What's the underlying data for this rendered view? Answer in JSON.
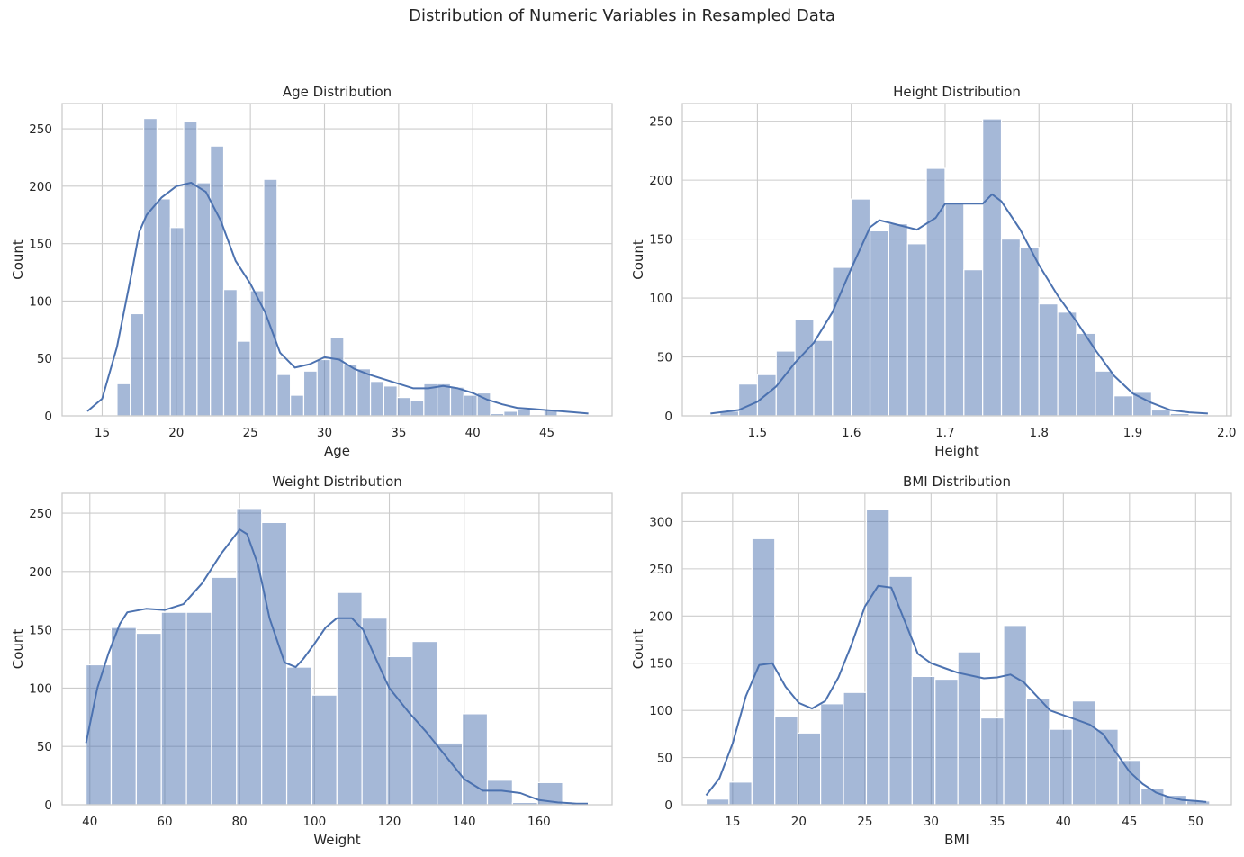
{
  "figure": {
    "title": "Distribution of Numeric Variables in Resampled Data"
  },
  "colors": {
    "bar_fill": "#4c72b0",
    "bar_opacity": 0.5,
    "kde_line": "#4c72b0",
    "grid": "#cccccc",
    "spine": "#cccccc"
  },
  "chart_data": [
    {
      "type": "bar",
      "title": "Age Distribution",
      "xlabel": "Age",
      "ylabel": "Count",
      "xlim": [
        12.3,
        49.4
      ],
      "ylim": [
        0,
        272
      ],
      "xticks": [
        15,
        20,
        25,
        30,
        35,
        40,
        45
      ],
      "yticks": [
        0,
        50,
        100,
        150,
        200,
        250
      ],
      "grid": true,
      "bins": {
        "start": 16.0,
        "width": 0.9,
        "counts": [
          28,
          89,
          259,
          189,
          164,
          256,
          203,
          235,
          110,
          65,
          109,
          206,
          36,
          18,
          39,
          49,
          68,
          45,
          41,
          30,
          26,
          16,
          13,
          28,
          28,
          25,
          18,
          20,
          2,
          4,
          6,
          1,
          5
        ]
      },
      "kde": {
        "x": [
          14.0,
          15.0,
          16.0,
          17.0,
          17.5,
          18.0,
          19.0,
          20.0,
          21.0,
          22.0,
          23.0,
          24.0,
          25.0,
          26.0,
          27.0,
          28.0,
          29.0,
          30.0,
          31.0,
          32.0,
          33.0,
          34.0,
          35.0,
          36.0,
          37.0,
          38.0,
          39.0,
          40.0,
          41.0,
          42.0,
          43.0,
          44.0,
          45.0,
          46.0,
          47.0,
          47.8
        ],
        "y": [
          4,
          15,
          60,
          125,
          160,
          175,
          190,
          200,
          203,
          195,
          170,
          135,
          115,
          90,
          55,
          42,
          45,
          51,
          49,
          41,
          36,
          32,
          28,
          24,
          24,
          26,
          24,
          20,
          14,
          10,
          7,
          6,
          5,
          4,
          3,
          2
        ]
      }
    },
    {
      "type": "bar",
      "title": "Height Distribution",
      "xlabel": "Height",
      "ylabel": "Count",
      "xlim": [
        1.42,
        2.005
      ],
      "ylim": [
        0,
        265
      ],
      "xticks": [
        1.5,
        1.6,
        1.7,
        1.8,
        1.9,
        2.0
      ],
      "yticks": [
        0,
        50,
        100,
        150,
        200,
        250
      ],
      "grid": true,
      "bins": {
        "start": 1.46,
        "width": 0.02,
        "counts": [
          4,
          27,
          35,
          55,
          82,
          64,
          126,
          184,
          157,
          163,
          146,
          210,
          180,
          124,
          252,
          150,
          143,
          95,
          88,
          70,
          38,
          17,
          20,
          5,
          2,
          1
        ]
      },
      "kde": {
        "x": [
          1.45,
          1.48,
          1.5,
          1.52,
          1.54,
          1.56,
          1.58,
          1.6,
          1.62,
          1.63,
          1.65,
          1.67,
          1.69,
          1.7,
          1.72,
          1.74,
          1.75,
          1.76,
          1.78,
          1.8,
          1.82,
          1.84,
          1.86,
          1.88,
          1.9,
          1.92,
          1.94,
          1.96,
          1.98
        ],
        "y": [
          2,
          5,
          12,
          25,
          45,
          62,
          88,
          125,
          160,
          166,
          162,
          158,
          168,
          180,
          180,
          180,
          188,
          182,
          158,
          128,
          102,
          80,
          56,
          34,
          19,
          11,
          5,
          3,
          2
        ]
      }
    },
    {
      "type": "bar",
      "title": "Weight Distribution",
      "xlabel": "Weight",
      "ylabel": "Count",
      "xlim": [
        32.6,
        179.5
      ],
      "ylim": [
        0,
        267
      ],
      "xticks": [
        40,
        60,
        80,
        100,
        120,
        140,
        160
      ],
      "yticks": [
        0,
        50,
        100,
        150,
        200,
        250
      ],
      "grid": true,
      "bins": {
        "start": 39.0,
        "width": 6.7,
        "counts": [
          120,
          152,
          147,
          165,
          165,
          195,
          254,
          242,
          118,
          94,
          182,
          160,
          127,
          140,
          53,
          78,
          21,
          2,
          19
        ]
      },
      "kde": {
        "x": [
          39,
          42,
          45,
          48,
          50,
          55,
          60,
          65,
          70,
          75,
          80,
          82,
          85,
          88,
          92,
          95,
          97,
          100,
          103,
          106,
          110,
          113,
          116,
          120,
          125,
          130,
          135,
          140,
          145,
          150,
          155,
          160,
          165,
          170,
          173
        ],
        "y": [
          53,
          100,
          130,
          155,
          165,
          168,
          167,
          172,
          190,
          215,
          236,
          232,
          205,
          160,
          122,
          118,
          125,
          138,
          152,
          160,
          160,
          150,
          128,
          100,
          80,
          62,
          42,
          22,
          12,
          12,
          10,
          4,
          2,
          1,
          1
        ]
      }
    },
    {
      "type": "bar",
      "title": "BMI Distribution",
      "xlabel": "BMI",
      "ylabel": "Count",
      "xlim": [
        11.2,
        52.7
      ],
      "ylim": [
        0,
        330
      ],
      "xticks": [
        15,
        20,
        25,
        30,
        35,
        40,
        45,
        50
      ],
      "yticks": [
        0,
        50,
        100,
        150,
        200,
        250,
        300
      ],
      "grid": true,
      "bins": {
        "start": 13.0,
        "width": 1.73,
        "counts": [
          6,
          24,
          282,
          94,
          76,
          107,
          119,
          313,
          242,
          136,
          133,
          162,
          92,
          190,
          113,
          80,
          110,
          80,
          47,
          17,
          10,
          4
        ]
      },
      "kde": {
        "x": [
          13,
          14,
          15,
          16,
          17,
          18,
          19,
          20,
          21,
          22,
          23,
          24,
          25,
          26,
          27,
          28,
          29,
          30,
          31,
          32,
          33,
          34,
          35,
          36,
          37,
          38,
          39,
          40,
          41,
          42,
          43,
          44,
          45,
          46,
          47,
          48,
          49,
          50,
          50.8
        ],
        "y": [
          10,
          28,
          65,
          115,
          148,
          150,
          125,
          108,
          102,
          110,
          135,
          170,
          210,
          232,
          230,
          195,
          160,
          150,
          145,
          140,
          137,
          134,
          135,
          138,
          130,
          115,
          100,
          95,
          90,
          85,
          75,
          55,
          35,
          22,
          13,
          8,
          5,
          4,
          3
        ]
      }
    }
  ]
}
